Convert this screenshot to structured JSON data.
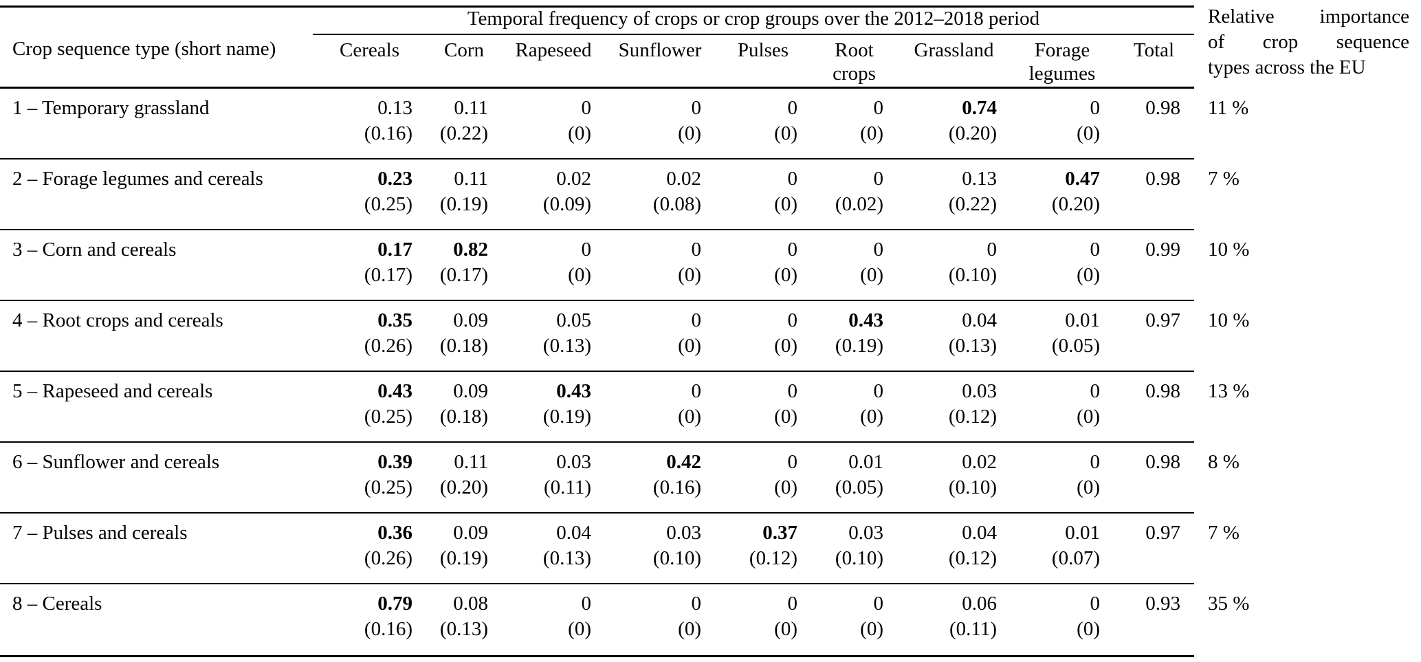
{
  "table": {
    "corner_header": "Crop sequence type (short name)",
    "span_header": "Temporal frequency of crops or crop groups over the 2012–2018 period",
    "right_header_lines": [
      "Relative importance",
      "of crop sequence",
      "types across the EU"
    ],
    "columns": [
      "Cereals",
      "Corn",
      "Rapeseed",
      "Sunflower",
      "Pulses",
      "Root crops",
      "Grassland",
      "Forage legumes",
      "Total"
    ],
    "rows": [
      {
        "name": "1 – Temporary grassland",
        "values": [
          {
            "mean": "0.13",
            "sd": "(0.16)",
            "bold": false
          },
          {
            "mean": "0.11",
            "sd": "(0.22)",
            "bold": false
          },
          {
            "mean": "0",
            "sd": "(0)",
            "bold": false
          },
          {
            "mean": "0",
            "sd": "(0)",
            "bold": false
          },
          {
            "mean": "0",
            "sd": "(0)",
            "bold": false
          },
          {
            "mean": "0",
            "sd": "(0)",
            "bold": false
          },
          {
            "mean": "0.74",
            "sd": "(0.20)",
            "bold": true
          },
          {
            "mean": "0",
            "sd": "(0)",
            "bold": false
          }
        ],
        "total": "0.98",
        "importance": "11 %"
      },
      {
        "name": "2 – Forage legumes and cereals",
        "values": [
          {
            "mean": "0.23",
            "sd": "(0.25)",
            "bold": true
          },
          {
            "mean": "0.11",
            "sd": "(0.19)",
            "bold": false
          },
          {
            "mean": "0.02",
            "sd": "(0.09)",
            "bold": false
          },
          {
            "mean": "0.02",
            "sd": "(0.08)",
            "bold": false
          },
          {
            "mean": "0",
            "sd": "(0)",
            "bold": false
          },
          {
            "mean": "0",
            "sd": "(0.02)",
            "bold": false
          },
          {
            "mean": "0.13",
            "sd": "(0.22)",
            "bold": false
          },
          {
            "mean": "0.47",
            "sd": "(0.20)",
            "bold": true
          }
        ],
        "total": "0.98",
        "importance": "7 %"
      },
      {
        "name": "3 – Corn and cereals",
        "values": [
          {
            "mean": "0.17",
            "sd": "(0.17)",
            "bold": true
          },
          {
            "mean": "0.82",
            "sd": "(0.17)",
            "bold": true
          },
          {
            "mean": "0",
            "sd": "(0)",
            "bold": false
          },
          {
            "mean": "0",
            "sd": "(0)",
            "bold": false
          },
          {
            "mean": "0",
            "sd": "(0)",
            "bold": false
          },
          {
            "mean": "0",
            "sd": "(0)",
            "bold": false
          },
          {
            "mean": "0",
            "sd": "(0.10)",
            "bold": false
          },
          {
            "mean": "0",
            "sd": "(0)",
            "bold": false
          }
        ],
        "total": "0.99",
        "importance": "10 %"
      },
      {
        "name": "4 – Root crops and cereals",
        "values": [
          {
            "mean": "0.35",
            "sd": "(0.26)",
            "bold": true
          },
          {
            "mean": "0.09",
            "sd": "(0.18)",
            "bold": false
          },
          {
            "mean": "0.05",
            "sd": "(0.13)",
            "bold": false
          },
          {
            "mean": "0",
            "sd": "(0)",
            "bold": false
          },
          {
            "mean": "0",
            "sd": "(0)",
            "bold": false
          },
          {
            "mean": "0.43",
            "sd": "(0.19)",
            "bold": true
          },
          {
            "mean": "0.04",
            "sd": "(0.13)",
            "bold": false
          },
          {
            "mean": "0.01",
            "sd": "(0.05)",
            "bold": false
          }
        ],
        "total": "0.97",
        "importance": "10 %"
      },
      {
        "name": "5 – Rapeseed and cereals",
        "values": [
          {
            "mean": "0.43",
            "sd": "(0.25)",
            "bold": true
          },
          {
            "mean": "0.09",
            "sd": "(0.18)",
            "bold": false
          },
          {
            "mean": "0.43",
            "sd": "(0.19)",
            "bold": true
          },
          {
            "mean": "0",
            "sd": "(0)",
            "bold": false
          },
          {
            "mean": "0",
            "sd": "(0)",
            "bold": false
          },
          {
            "mean": "0",
            "sd": "(0)",
            "bold": false
          },
          {
            "mean": "0.03",
            "sd": "(0.12)",
            "bold": false
          },
          {
            "mean": "0",
            "sd": "(0)",
            "bold": false
          }
        ],
        "total": "0.98",
        "importance": "13 %"
      },
      {
        "name": "6 – Sunflower and cereals",
        "values": [
          {
            "mean": "0.39",
            "sd": "(0.25)",
            "bold": true
          },
          {
            "mean": "0.11",
            "sd": "(0.20)",
            "bold": false
          },
          {
            "mean": "0.03",
            "sd": "(0.11)",
            "bold": false
          },
          {
            "mean": "0.42",
            "sd": "(0.16)",
            "bold": true
          },
          {
            "mean": "0",
            "sd": "(0)",
            "bold": false
          },
          {
            "mean": "0.01",
            "sd": "(0.05)",
            "bold": false
          },
          {
            "mean": "0.02",
            "sd": "(0.10)",
            "bold": false
          },
          {
            "mean": "0",
            "sd": "(0)",
            "bold": false
          }
        ],
        "total": "0.98",
        "importance": "8 %"
      },
      {
        "name": "7 – Pulses and cereals",
        "values": [
          {
            "mean": "0.36",
            "sd": "(0.26)",
            "bold": true
          },
          {
            "mean": "0.09",
            "sd": "(0.19)",
            "bold": false
          },
          {
            "mean": "0.04",
            "sd": "(0.13)",
            "bold": false
          },
          {
            "mean": "0.03",
            "sd": "(0.10)",
            "bold": false
          },
          {
            "mean": "0.37",
            "sd": "(0.12)",
            "bold": true
          },
          {
            "mean": "0.03",
            "sd": "(0.10)",
            "bold": false
          },
          {
            "mean": "0.04",
            "sd": "(0.12)",
            "bold": false
          },
          {
            "mean": "0.01",
            "sd": "(0.07)",
            "bold": false
          }
        ],
        "total": "0.97",
        "importance": "7 %"
      },
      {
        "name": "8 – Cereals",
        "values": [
          {
            "mean": "0.79",
            "sd": "(0.16)",
            "bold": true
          },
          {
            "mean": "0.08",
            "sd": "(0.13)",
            "bold": false
          },
          {
            "mean": "0",
            "sd": "(0)",
            "bold": false
          },
          {
            "mean": "0",
            "sd": "(0)",
            "bold": false
          },
          {
            "mean": "0",
            "sd": "(0)",
            "bold": false
          },
          {
            "mean": "0",
            "sd": "(0)",
            "bold": false
          },
          {
            "mean": "0.06",
            "sd": "(0.11)",
            "bold": false
          },
          {
            "mean": "0",
            "sd": "(0)",
            "bold": false
          }
        ],
        "total": "0.93",
        "importance": "35 %"
      }
    ]
  }
}
